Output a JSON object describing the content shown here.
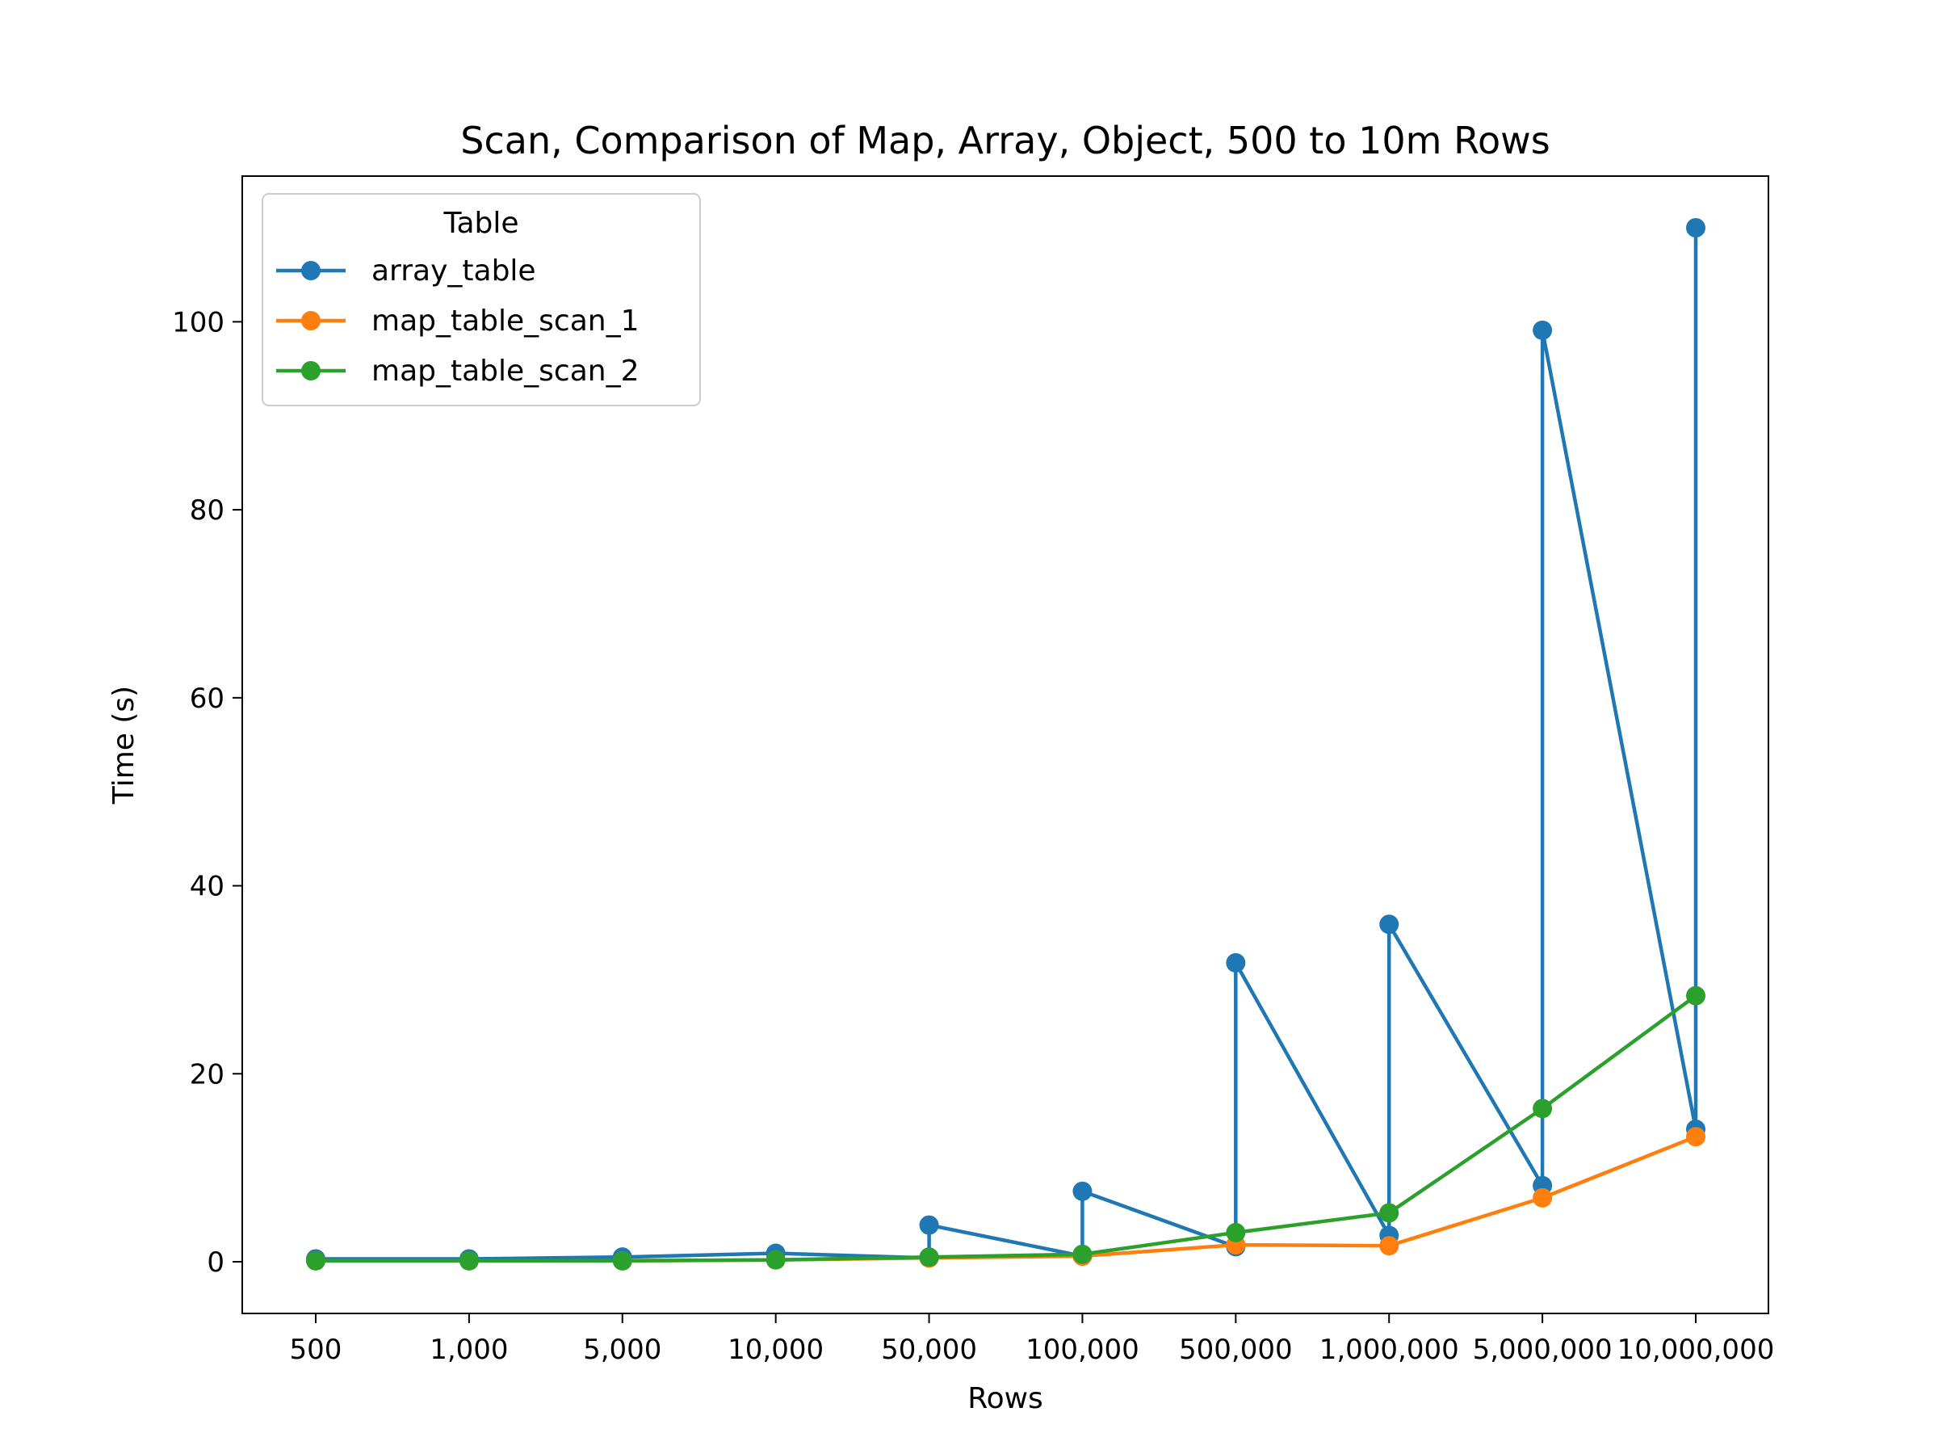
{
  "chart_data": {
    "type": "line",
    "title": "Scan, Comparison of Map, Array, Object, 500 to 10m Rows",
    "xlabel": "Rows",
    "ylabel": "Time (s)",
    "categories": [
      "500",
      "1,000",
      "5,000",
      "10,000",
      "50,000",
      "100,000",
      "500,000",
      "1,000,000",
      "5,000,000",
      "10,000,000"
    ],
    "yticks": [
      0,
      20,
      40,
      60,
      80,
      100
    ],
    "ylim": [
      -5.5,
      115.5
    ],
    "legend": {
      "title": "Table",
      "position": "top-left"
    },
    "series": [
      {
        "name": "array_table",
        "color": "#1f77b4",
        "points": [
          {
            "x": 0,
            "y": 0.3
          },
          {
            "x": 1,
            "y": 0.3
          },
          {
            "x": 2,
            "y": 0.5
          },
          {
            "x": 3,
            "y": 0.9
          },
          {
            "x": 4,
            "y": 0.4
          },
          {
            "x": 4,
            "y": 3.9
          },
          {
            "x": 5,
            "y": 0.6
          },
          {
            "x": 5,
            "y": 7.5
          },
          {
            "x": 6,
            "y": 1.6
          },
          {
            "x": 6,
            "y": 31.8
          },
          {
            "x": 7,
            "y": 2.8
          },
          {
            "x": 7,
            "y": 35.9
          },
          {
            "x": 8,
            "y": 8.1
          },
          {
            "x": 8,
            "y": 99.1
          },
          {
            "x": 9,
            "y": 14.1
          },
          {
            "x": 9,
            "y": 110.0
          }
        ]
      },
      {
        "name": "map_table_scan_1",
        "color": "#ff7f0e",
        "points": [
          {
            "x": 0,
            "y": 0.1
          },
          {
            "x": 1,
            "y": 0.1
          },
          {
            "x": 2,
            "y": 0.1
          },
          {
            "x": 3,
            "y": 0.2
          },
          {
            "x": 4,
            "y": 0.4
          },
          {
            "x": 5,
            "y": 0.6
          },
          {
            "x": 6,
            "y": 1.8
          },
          {
            "x": 7,
            "y": 1.7
          },
          {
            "x": 8,
            "y": 6.8
          },
          {
            "x": 9,
            "y": 13.3
          }
        ]
      },
      {
        "name": "map_table_scan_2",
        "color": "#2ca02c",
        "points": [
          {
            "x": 0,
            "y": 0.1
          },
          {
            "x": 1,
            "y": 0.1
          },
          {
            "x": 2,
            "y": 0.1
          },
          {
            "x": 3,
            "y": 0.2
          },
          {
            "x": 4,
            "y": 0.5
          },
          {
            "x": 5,
            "y": 0.8
          },
          {
            "x": 6,
            "y": 3.1
          },
          {
            "x": 7,
            "y": 5.2
          },
          {
            "x": 8,
            "y": 16.3
          },
          {
            "x": 9,
            "y": 28.3
          }
        ]
      }
    ]
  }
}
